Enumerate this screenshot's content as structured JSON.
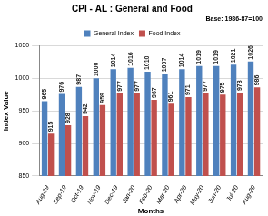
{
  "chart_data": {
    "type": "bar",
    "title": "CPI - AL : General and Food",
    "subtitle": "Base: 1986-87=100",
    "x_label": "Months",
    "y_label": "Index Value",
    "categories": [
      "Aug-19",
      "Sep-19",
      "Oct-19",
      "Nov-19",
      "Dec-19",
      "Jan-20",
      "Feb-20",
      "Mar-20",
      "Apr-20",
      "May-20",
      "Jun-20",
      "Jul-20",
      "Aug-20"
    ],
    "series": [
      {
        "name": "General Index",
        "color": "#4f81bd",
        "values": [
          965,
          976,
          987,
          1000,
          1014,
          1016,
          1010,
          1007,
          1014,
          1019,
          1019,
          1021,
          1026
        ]
      },
      {
        "name": "Food Index",
        "color": "#c0504d",
        "values": [
          915,
          928,
          942,
          959,
          977,
          977,
          967,
          961,
          971,
          977,
          975,
          978,
          986
        ]
      }
    ],
    "ylim": [
      850,
      1050
    ],
    "yticks": [
      850,
      900,
      950,
      1000,
      1050
    ],
    "grid": true,
    "legend": "top",
    "data_labels": true
  }
}
